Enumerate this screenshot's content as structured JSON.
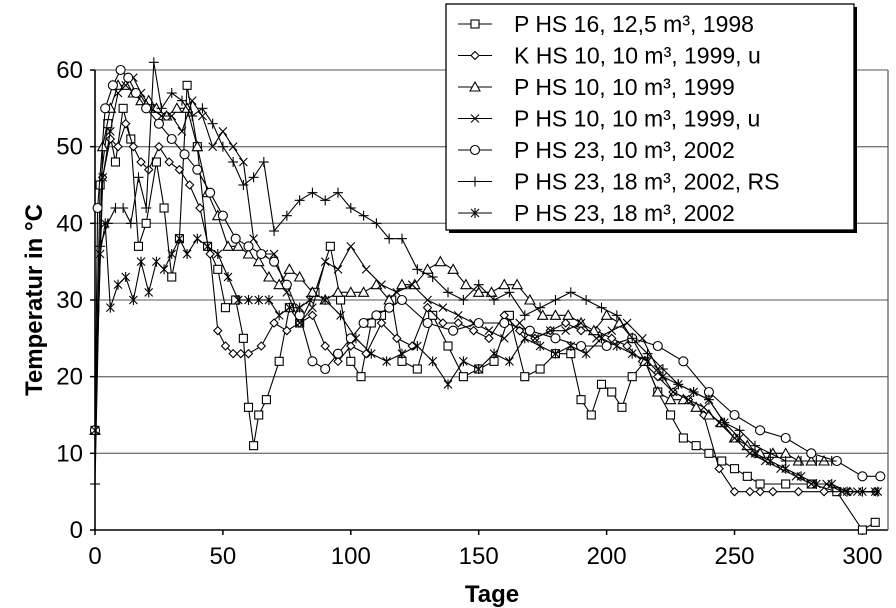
{
  "chart_data": {
    "type": "line",
    "xlabel": "Tage",
    "ylabel": "Temperatur in °C",
    "xlim": [
      0,
      310
    ],
    "ylim": [
      0,
      60
    ],
    "x_ticks": [
      0,
      50,
      100,
      150,
      200,
      250,
      300
    ],
    "y_ticks": [
      0,
      10,
      20,
      30,
      40,
      50,
      60
    ],
    "grid": "horizontal",
    "legend_position": "top-right",
    "series": [
      {
        "name": "P HS 16, 12,5 m³, 1998",
        "marker": "square",
        "x": [
          0,
          2,
          5,
          8,
          11,
          14,
          17,
          20,
          24,
          27,
          30,
          33,
          36,
          40,
          44,
          48,
          51,
          55,
          58,
          60,
          62,
          64,
          67,
          72,
          76,
          80,
          86,
          92,
          96,
          100,
          104,
          108,
          112,
          116,
          120,
          126,
          132,
          138,
          144,
          150,
          156,
          162,
          168,
          174,
          180,
          186,
          190,
          194,
          198,
          202,
          206,
          210,
          215,
          220,
          225,
          230,
          235,
          240,
          245,
          250,
          255,
          260,
          270,
          280,
          290,
          300,
          305
        ],
        "y": [
          13,
          45,
          53,
          48,
          55,
          51,
          37,
          40,
          48,
          42,
          33,
          38,
          58,
          50,
          37,
          34,
          29,
          30,
          25,
          16,
          11,
          15,
          17,
          22,
          29,
          27,
          31,
          37,
          30,
          22,
          20,
          27,
          28,
          30,
          22,
          21,
          28,
          24,
          20,
          21,
          22,
          28,
          20,
          21,
          23,
          23,
          17,
          15,
          19,
          18,
          16,
          20,
          22,
          18,
          15,
          12,
          11,
          10,
          9,
          8,
          7,
          6,
          6,
          6,
          5,
          0,
          1
        ]
      },
      {
        "name": "K HS 10, 10 m³, 1999, u",
        "marker": "diamond",
        "x": [
          0,
          3,
          6,
          9,
          12,
          15,
          18,
          21,
          25,
          29,
          33,
          37,
          41,
          45,
          48,
          51,
          54,
          57,
          60,
          65,
          70,
          75,
          80,
          85,
          90,
          95,
          100,
          106,
          112,
          118,
          124,
          130,
          136,
          142,
          148,
          154,
          160,
          166,
          172,
          178,
          184,
          190,
          196,
          202,
          208,
          214,
          220,
          226,
          232,
          238,
          244,
          250,
          256,
          260,
          265,
          275,
          285,
          295,
          305
        ],
        "y": [
          13,
          46,
          51,
          50,
          53,
          50,
          48,
          47,
          50,
          48,
          47,
          45,
          42,
          36,
          26,
          24,
          23,
          23,
          23,
          24,
          27,
          26,
          27,
          28,
          24,
          22,
          24,
          23,
          27,
          25,
          24,
          29,
          27,
          27,
          26,
          25,
          28,
          26,
          25,
          26,
          27,
          26,
          26,
          25,
          24,
          22,
          20,
          18,
          17,
          15,
          8,
          5,
          5,
          5,
          5,
          5,
          5,
          5,
          5
        ]
      },
      {
        "name": "P HS 10, 10 m³, 1999",
        "marker": "triangle",
        "x": [
          0,
          3,
          6,
          9,
          12,
          15,
          18,
          21,
          24,
          28,
          32,
          36,
          40,
          44,
          48,
          52,
          56,
          60,
          64,
          68,
          72,
          76,
          80,
          85,
          90,
          95,
          100,
          105,
          110,
          115,
          120,
          125,
          130,
          135,
          140,
          145,
          150,
          155,
          160,
          165,
          170,
          175,
          180,
          185,
          190,
          195,
          200,
          205,
          210,
          215,
          220,
          225,
          230,
          235,
          240,
          245,
          250,
          255,
          260,
          265,
          270,
          275,
          280,
          285
        ],
        "y": [
          13,
          50,
          55,
          58,
          58,
          57,
          56,
          56,
          55,
          54,
          55,
          55,
          50,
          44,
          41,
          37,
          37,
          36,
          35,
          33,
          32,
          34,
          33,
          31,
          30,
          31,
          31,
          31,
          32,
          30,
          32,
          32,
          34,
          35,
          34,
          32,
          31,
          31,
          32,
          32,
          30,
          28,
          28,
          28,
          27,
          26,
          28,
          27,
          25,
          22,
          18,
          17,
          17,
          16,
          15,
          14,
          12,
          11,
          10,
          10,
          10,
          9,
          9,
          9
        ]
      },
      {
        "name": "P HS 10, 10 m³, 1999, u",
        "marker": "x",
        "x": [
          0,
          3,
          6,
          9,
          12,
          15,
          18,
          22,
          26,
          30,
          34,
          38,
          42,
          46,
          50,
          54,
          58,
          62,
          66,
          70,
          75,
          80,
          85,
          90,
          95,
          100,
          106,
          112,
          118,
          124,
          130,
          136,
          142,
          148,
          154,
          160,
          166,
          172,
          178,
          184,
          190,
          196,
          202,
          208,
          214,
          220,
          226,
          232,
          238,
          244,
          250,
          256,
          262,
          268,
          274,
          280,
          286,
          292,
          298,
          305
        ],
        "y": [
          13,
          46,
          52,
          57,
          58,
          59,
          57,
          55,
          54,
          54,
          52,
          56,
          54,
          50,
          52,
          50,
          48,
          38,
          36,
          36,
          31,
          27,
          29,
          35,
          34,
          37,
          34,
          32,
          31,
          32,
          30,
          29,
          28,
          27,
          26,
          25,
          27,
          25,
          26,
          26,
          27,
          25,
          26,
          27,
          25,
          21,
          18,
          17,
          16,
          14,
          12,
          10,
          9,
          8,
          7,
          6,
          6,
          5,
          5,
          5
        ]
      },
      {
        "name": "P HS 23, 10 m³, 2002",
        "marker": "circle",
        "x": [
          0,
          1,
          4,
          7,
          10,
          13,
          16,
          20,
          25,
          30,
          35,
          40,
          45,
          50,
          55,
          60,
          65,
          70,
          75,
          80,
          85,
          90,
          95,
          100,
          105,
          110,
          115,
          120,
          130,
          140,
          150,
          160,
          170,
          180,
          190,
          200,
          210,
          220,
          230,
          240,
          250,
          260,
          270,
          280,
          290,
          300,
          307
        ],
        "y": [
          13,
          42,
          55,
          58,
          60,
          59,
          57,
          55,
          53,
          51,
          49,
          47,
          44,
          41,
          38,
          37,
          36,
          35,
          32,
          28,
          22,
          21,
          23,
          25,
          27,
          28,
          29,
          30,
          27,
          26,
          27,
          27,
          26,
          25,
          24,
          24,
          25,
          24,
          22,
          18,
          15,
          13,
          12,
          10,
          9,
          7,
          7
        ]
      },
      {
        "name": "P HS 23, 18 m³, 2002, RS",
        "marker": "plus",
        "x": [
          0,
          2,
          5,
          8,
          11,
          14,
          17,
          20,
          23,
          26,
          30,
          34,
          38,
          42,
          46,
          50,
          54,
          58,
          62,
          66,
          70,
          75,
          80,
          85,
          90,
          95,
          100,
          105,
          110,
          115,
          120,
          126,
          132,
          138,
          144,
          150,
          156,
          162,
          168,
          174,
          180,
          186,
          192,
          198,
          204,
          210,
          216,
          222,
          228,
          234,
          240,
          246,
          252,
          258,
          264,
          270,
          276,
          282,
          288
        ],
        "y": [
          6,
          37,
          40,
          42,
          42,
          40,
          46,
          42,
          61,
          55,
          57,
          56,
          54,
          55,
          53,
          50,
          48,
          45,
          46,
          48,
          39,
          41,
          43,
          44,
          43,
          44,
          42,
          41,
          40,
          38,
          38,
          34,
          33,
          31,
          30,
          32,
          30,
          31,
          28,
          29,
          30,
          31,
          30,
          29,
          28,
          25,
          23,
          21,
          19,
          18,
          17,
          14,
          13,
          11,
          10,
          9,
          9,
          9,
          9
        ]
      },
      {
        "name": "P HS 23, 18 m³, 2002",
        "marker": "asterisk",
        "x": [
          0,
          2,
          4,
          6,
          9,
          12,
          15,
          18,
          21,
          24,
          27,
          30,
          33,
          36,
          40,
          44,
          48,
          52,
          56,
          60,
          64,
          68,
          72,
          76,
          80,
          84,
          90,
          96,
          102,
          108,
          114,
          120,
          126,
          132,
          138,
          144,
          150,
          156,
          162,
          168,
          174,
          180,
          186,
          192,
          198,
          204,
          210,
          216,
          222,
          228,
          234,
          240,
          246,
          252,
          258,
          264,
          270,
          276,
          282,
          288,
          294,
          300,
          306
        ],
        "y": [
          13,
          36,
          40,
          29,
          32,
          33,
          30,
          35,
          31,
          35,
          34,
          36,
          38,
          36,
          38,
          37,
          36,
          33,
          30,
          30,
          30,
          30,
          28,
          29,
          29,
          30,
          30,
          28,
          25,
          23,
          22,
          23,
          24,
          22,
          19,
          22,
          21,
          23,
          22,
          25,
          24,
          23,
          24,
          23,
          25,
          24,
          23,
          22,
          20,
          19,
          18,
          17,
          14,
          12,
          10,
          9,
          8,
          7,
          6,
          6,
          5,
          5,
          5
        ]
      }
    ]
  }
}
